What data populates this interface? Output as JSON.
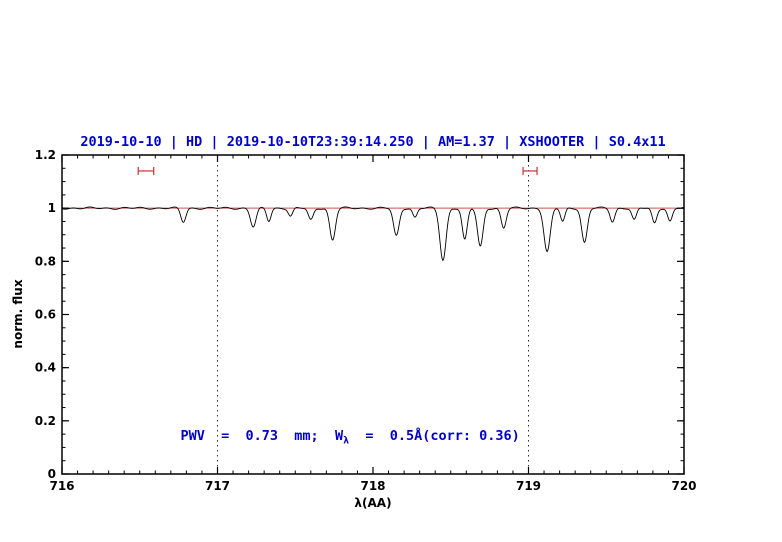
{
  "chart_data": {
    "type": "line",
    "title": "2019-10-10 | HD | 2019-10-10T23:39:14.250 | AM=1.37 | XSHOOTER | S0.4x11",
    "xlabel": "λ(AA)",
    "ylabel": "norm. flux",
    "xlim": [
      716,
      720
    ],
    "ylim": [
      0,
      1.2
    ],
    "xticks": [
      716,
      717,
      718,
      719,
      720
    ],
    "xtick_labels": [
      "716",
      "717",
      "718",
      "719",
      "720"
    ],
    "yticks": [
      0,
      0.2,
      0.4,
      0.6,
      0.8,
      1,
      1.2
    ],
    "ytick_labels": [
      "0",
      "0.2",
      "0.4",
      "0.6",
      "0.8",
      "1",
      "1.2"
    ],
    "x_minor_step": 0.1,
    "y_minor_step": 0.05,
    "grid": "off",
    "legend": "none",
    "vlines": [
      717,
      719
    ],
    "vline_style": "dotted",
    "continuum": 1.0,
    "markers": [
      {
        "x": 716.54,
        "half_width": 0.05,
        "y": 1.14
      },
      {
        "x": 719.01,
        "half_width": 0.045,
        "y": 1.14
      }
    ],
    "series_name": "normalized spectrum",
    "absorption_lines": [
      {
        "center": 716.78,
        "depth": 0.052,
        "sigma": 0.016
      },
      {
        "center": 717.23,
        "depth": 0.07,
        "sigma": 0.018
      },
      {
        "center": 717.33,
        "depth": 0.048,
        "sigma": 0.014
      },
      {
        "center": 717.47,
        "depth": 0.03,
        "sigma": 0.014
      },
      {
        "center": 717.6,
        "depth": 0.045,
        "sigma": 0.016
      },
      {
        "center": 717.74,
        "depth": 0.12,
        "sigma": 0.018
      },
      {
        "center": 718.15,
        "depth": 0.105,
        "sigma": 0.018
      },
      {
        "center": 718.27,
        "depth": 0.035,
        "sigma": 0.014
      },
      {
        "center": 718.45,
        "depth": 0.195,
        "sigma": 0.02
      },
      {
        "center": 718.59,
        "depth": 0.12,
        "sigma": 0.016
      },
      {
        "center": 718.69,
        "depth": 0.145,
        "sigma": 0.018
      },
      {
        "center": 718.84,
        "depth": 0.075,
        "sigma": 0.016
      },
      {
        "center": 719.12,
        "depth": 0.165,
        "sigma": 0.02
      },
      {
        "center": 719.22,
        "depth": 0.05,
        "sigma": 0.014
      },
      {
        "center": 719.36,
        "depth": 0.13,
        "sigma": 0.018
      },
      {
        "center": 719.54,
        "depth": 0.05,
        "sigma": 0.015
      },
      {
        "center": 719.68,
        "depth": 0.045,
        "sigma": 0.015
      },
      {
        "center": 719.81,
        "depth": 0.056,
        "sigma": 0.015
      },
      {
        "center": 719.91,
        "depth": 0.05,
        "sigma": 0.015
      }
    ],
    "colors": {
      "spectrum": "#000000",
      "continuum": "#cc5555",
      "marker": "#cc3333",
      "title": "#0000cc",
      "annotation": "#0000cc",
      "axes": "#000000"
    }
  },
  "annotation": {
    "text": "PWV  =  0.73  mm;  Wλ  =  0.5Å(corr: 0.36)",
    "prefix": "PWV  =  0.73  mm;  W",
    "sub": "λ",
    "suffix": "  =  0.5Å(corr: 0.36)"
  }
}
